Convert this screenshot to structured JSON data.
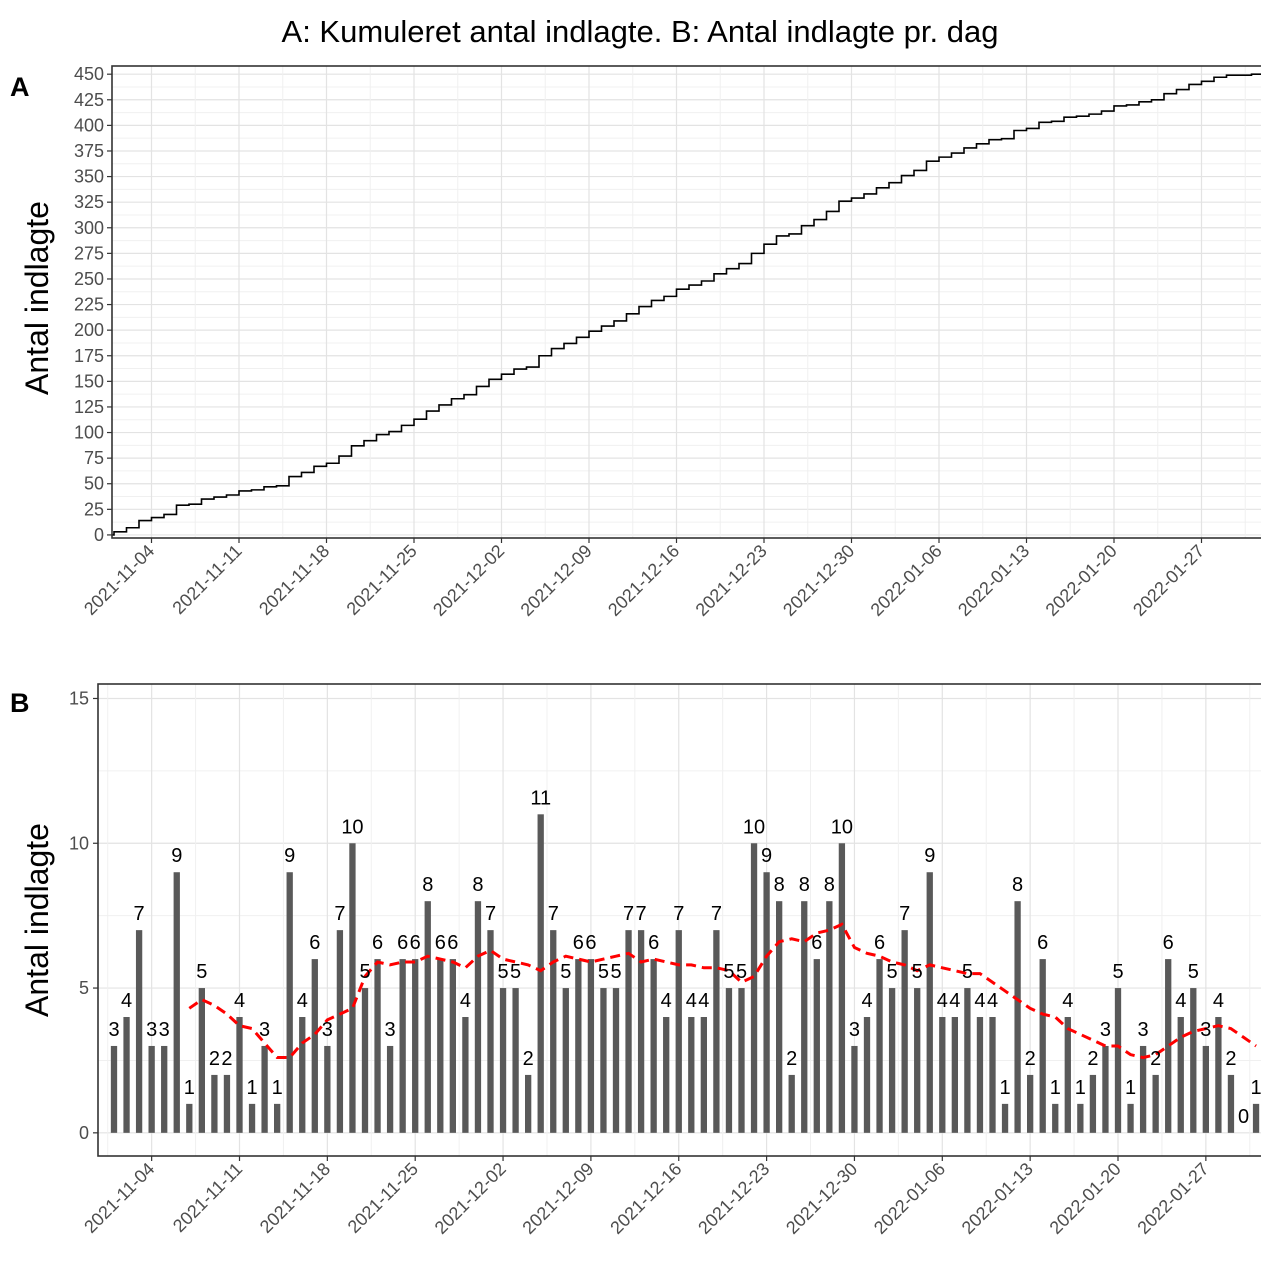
{
  "title": "A: Kumuleret antal indlagte. B: Antal indlagte pr. dag",
  "chart_data": [
    {
      "panel": "A",
      "type": "line",
      "line_style": "step",
      "ylabel": "Antal indlagte",
      "ylim": [
        -3,
        458
      ],
      "yticks": [
        0,
        25,
        50,
        75,
        100,
        125,
        150,
        175,
        200,
        225,
        250,
        275,
        300,
        325,
        350,
        375,
        400,
        425,
        450
      ],
      "xlim": [
        "2021-11-01",
        "2022-01-31"
      ],
      "xticks": [
        "2021-11-04",
        "2021-11-11",
        "2021-11-18",
        "2021-11-25",
        "2021-12-02",
        "2021-12-09",
        "2021-12-16",
        "2021-12-23",
        "2021-12-30",
        "2022-01-06",
        "2022-01-13",
        "2022-01-20",
        "2022-01-27"
      ],
      "grid": true
    },
    {
      "panel": "B",
      "type": "bar",
      "ylabel": "Antal indlagte",
      "ylim": [
        -0.8,
        15.5
      ],
      "yticks": [
        0,
        5,
        10,
        15
      ],
      "xticks": [
        "2021-11-04",
        "2021-11-11",
        "2021-11-18",
        "2021-11-25",
        "2021-12-02",
        "2021-12-09",
        "2021-12-16",
        "2021-12-23",
        "2021-12-30",
        "2022-01-06",
        "2022-01-13",
        "2022-01-20",
        "2022-01-27"
      ],
      "grid": true,
      "start_date": "2021-11-01",
      "values": [
        3,
        4,
        7,
        3,
        3,
        9,
        1,
        5,
        2,
        2,
        4,
        1,
        3,
        1,
        9,
        4,
        6,
        3,
        7,
        10,
        5,
        6,
        3,
        6,
        6,
        8,
        6,
        6,
        4,
        8,
        7,
        5,
        5,
        2,
        11,
        7,
        5,
        6,
        6,
        5,
        5,
        7,
        7,
        6,
        4,
        7,
        4,
        4,
        7,
        5,
        5,
        10,
        9,
        8,
        2,
        8,
        6,
        8,
        10,
        3,
        4,
        6,
        5,
        7,
        5,
        9,
        4,
        4,
        5,
        4,
        4,
        1,
        8,
        2,
        6,
        1,
        4,
        1,
        2,
        3,
        5,
        1,
        3,
        2,
        6,
        4,
        5,
        3,
        4,
        2,
        0,
        1
      ],
      "rolling_mean": {
        "style": "dashed",
        "color": "#ff0000",
        "values": [
          null,
          null,
          null,
          null,
          null,
          null,
          4.3,
          4.6,
          4.4,
          4.1,
          3.7,
          3.6,
          3.1,
          2.6,
          2.6,
          3.1,
          3.4,
          3.9,
          4.1,
          4.3,
          5.4,
          5.9,
          5.8,
          5.9,
          5.9,
          6.1,
          6.0,
          5.9,
          5.7,
          6.1,
          6.3,
          6.0,
          5.9,
          5.8,
          5.6,
          5.9,
          6.1,
          6.0,
          5.9,
          6.0,
          6.1,
          6.2,
          5.9,
          6.0,
          5.9,
          5.8,
          5.8,
          5.7,
          5.7,
          5.6,
          5.2,
          5.4,
          6.1,
          6.6,
          6.7,
          6.6,
          6.9,
          7.0,
          7.2,
          6.4,
          6.2,
          6.1,
          5.9,
          5.8,
          5.6,
          5.8,
          5.7,
          5.6,
          5.5,
          5.5,
          5.2,
          4.9,
          4.6,
          4.3,
          4.1,
          4.0,
          3.6,
          3.4,
          3.2,
          3.0,
          3.0,
          2.7,
          2.6,
          2.7,
          3.0,
          3.3,
          3.5,
          3.6,
          3.7,
          3.6,
          3.3,
          3.0
        ]
      }
    }
  ]
}
